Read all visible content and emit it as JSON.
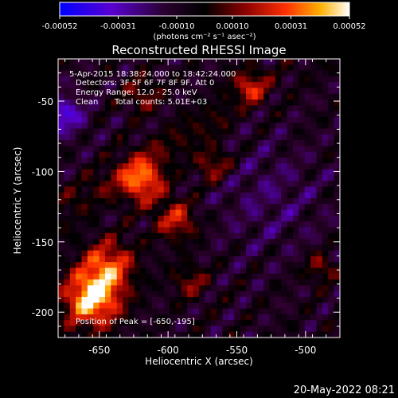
{
  "chart_data": {
    "type": "heatmap",
    "title": "Reconstructed RHESSI Image",
    "xlabel": "Heliocentric X (arcsec)",
    "ylabel": "Heliocentric Y (arcsec)",
    "xlim": [
      -680,
      -475
    ],
    "ylim": [
      -218,
      -20
    ],
    "x_ticks": [
      -650,
      -600,
      -550,
      -500
    ],
    "x_tick_labels": [
      "-650",
      "-600",
      "-550",
      "-500"
    ],
    "y_ticks": [
      -50,
      -100,
      -150,
      -200
    ],
    "y_tick_labels": [
      "-50",
      "-100",
      "-150",
      "-200"
    ],
    "colorbar": {
      "range": [
        -0.00052,
        0.00052
      ],
      "ticks": [
        -0.00052,
        -0.00031,
        -0.0001,
        0.0001,
        0.00031,
        0.00052
      ],
      "tick_labels": [
        "-0.00052",
        "-0.00031",
        "-0.00010",
        "0.00010",
        "0.00031",
        "0.00052"
      ],
      "units": "(photons cm⁻² s⁻¹ asec⁻²)",
      "placement": "top",
      "colors": [
        "#0000ff",
        "#6a00c8",
        "#2a0020",
        "#000000",
        "#8a0000",
        "#ff2a00",
        "#ffa000",
        "#ffffff"
      ]
    },
    "peak_x": -650,
    "peak_y": -195,
    "grid": false
  },
  "annotations": {
    "time_range": "5-Apr-2015 18:38:24.000 to 18:42:24.000",
    "detectors": "Detectors: 3F 5F 6F 7F 8F 9F, Att 0",
    "energy": "Energy Range: 12.0 - 25.0 keV",
    "clean": "Clean",
    "total_counts": "Total counts: 5.01E+03",
    "peak": "Position of Peak = [-650,-195]"
  },
  "footer": {
    "date": "20-May-2022 08:21"
  }
}
